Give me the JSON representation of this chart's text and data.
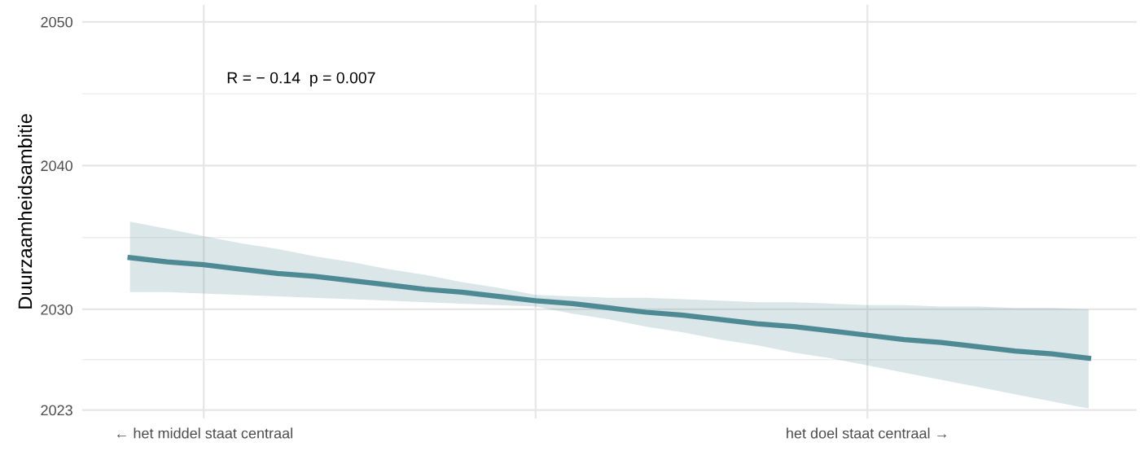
{
  "chart_data": {
    "type": "line",
    "ylabel": "Duurzaamheidsambitie",
    "categories": [
      null,
      null,
      "← het middel staat centraal",
      null,
      null,
      null,
      null,
      null,
      null,
      null,
      null,
      null,
      null,
      null,
      null,
      null,
      null,
      null,
      null,
      null,
      "het doel staat centraal →",
      null,
      null,
      null,
      null,
      null,
      null
    ],
    "series": [
      {
        "color": "#4e8a94",
        "values": [
          2033.6,
          2033.3,
          2033.1,
          2032.8,
          2032.5,
          2032.3,
          2032.0,
          2031.7,
          2031.4,
          2031.2,
          2030.9,
          2030.6,
          2030.4,
          2030.1,
          2029.8,
          2029.6,
          2029.3,
          2029.0,
          2028.8,
          2028.5,
          2028.2,
          2027.9,
          2027.7,
          2027.4,
          2027.1,
          2026.9,
          2026.6
        ],
        "lower": [
          2031.2,
          2031.2,
          2031.1,
          2031.0,
          2030.9,
          2030.8,
          2030.7,
          2030.6,
          2030.5,
          2030.4,
          2030.3,
          2030.2,
          2029.7,
          2029.3,
          2028.8,
          2028.4,
          2027.9,
          2027.5,
          2027.0,
          2026.6,
          2026.1,
          2025.6,
          2025.1,
          2024.6,
          2024.1,
          2023.6,
          2023.1
        ],
        "upper": [
          2036.1,
          2035.6,
          2035.1,
          2034.6,
          2034.2,
          2033.7,
          2033.3,
          2032.8,
          2032.4,
          2031.9,
          2031.5,
          2031.0,
          2030.9,
          2030.8,
          2030.8,
          2030.7,
          2030.6,
          2030.5,
          2030.5,
          2030.4,
          2030.3,
          2030.3,
          2030.2,
          2030.2,
          2030.1,
          2030.1,
          2030.0
        ]
      }
    ],
    "ylim": [
      2022.4,
      2051.2
    ],
    "yticks": [
      2023,
      2030,
      2040,
      2050
    ],
    "grid": true,
    "marker": "none",
    "line_style": "solid",
    "annotations": [
      "R = − 0.14  p = 0.007"
    ]
  }
}
